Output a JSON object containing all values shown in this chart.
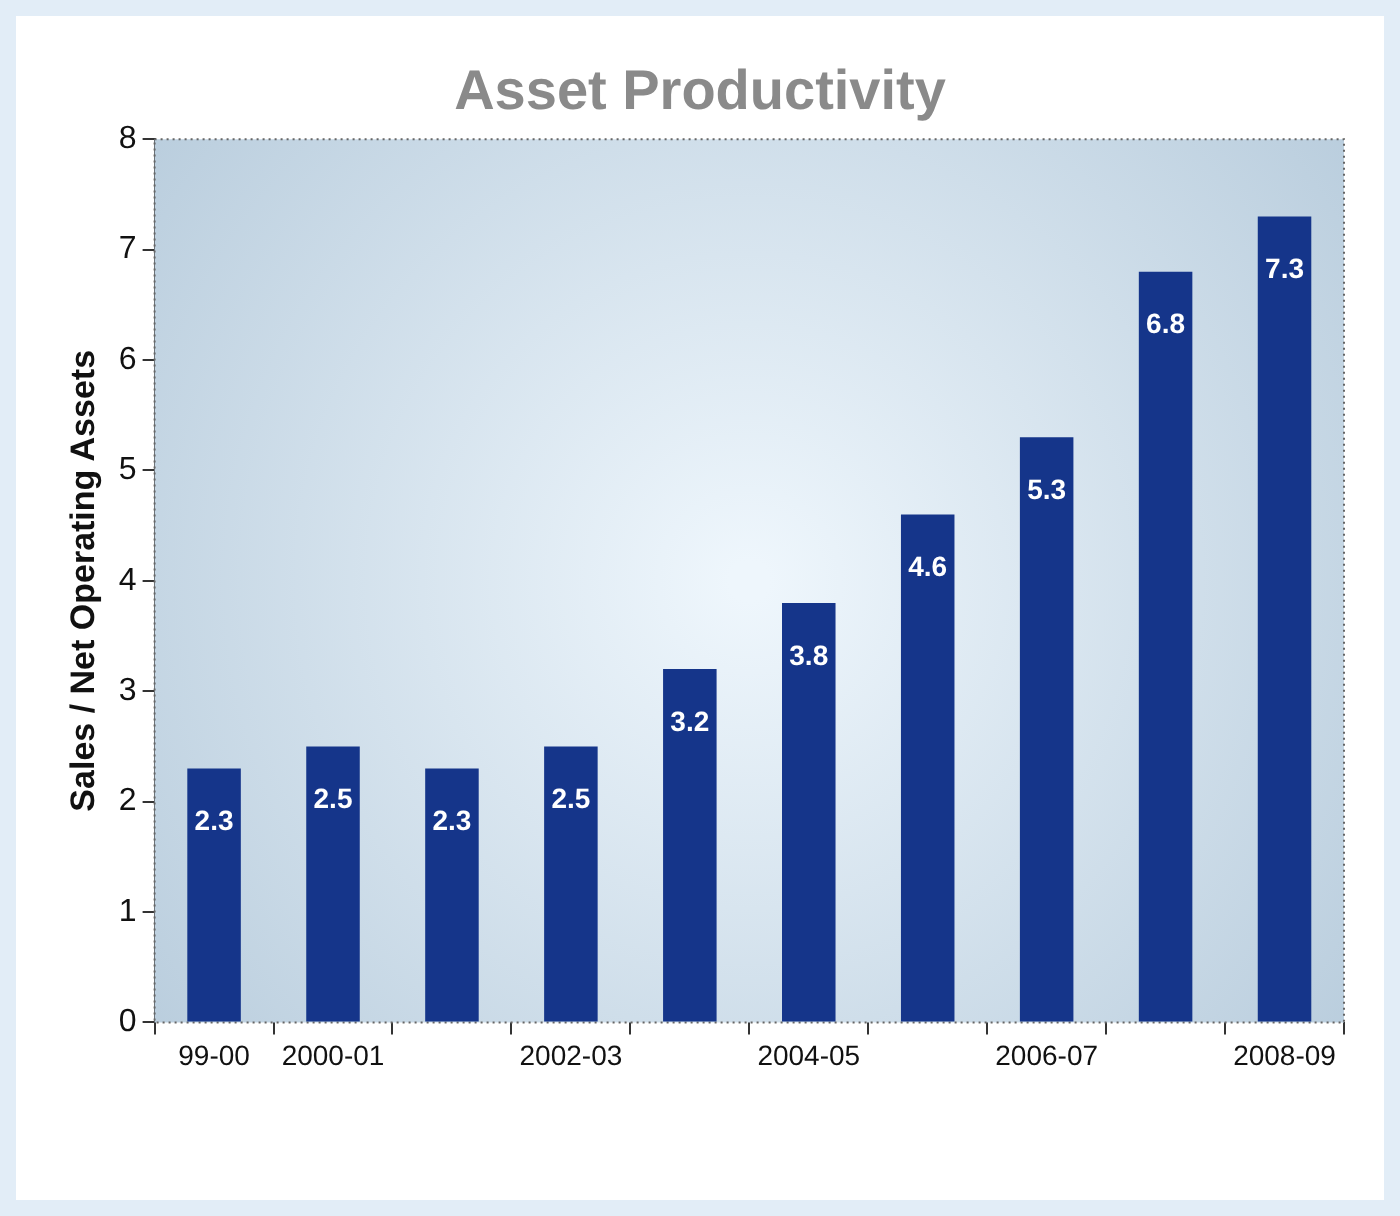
{
  "chart_data": {
    "type": "bar",
    "title": "Asset Productivity",
    "ylabel": "Sales / Net Operating Assets",
    "categories": [
      "99-00",
      "2000-01",
      null,
      "2002-03",
      null,
      "2004-05",
      null,
      "2006-07",
      null,
      "2008-09"
    ],
    "values": [
      2.3,
      2.5,
      2.3,
      2.5,
      3.2,
      3.8,
      4.6,
      5.3,
      6.8,
      7.3
    ],
    "color": "#15358a",
    "ylim": [
      0,
      8
    ],
    "yticks": [
      0,
      1,
      2,
      3,
      4,
      5,
      6,
      7,
      8
    ],
    "grid": false,
    "legend": false,
    "data_labels": true
  }
}
